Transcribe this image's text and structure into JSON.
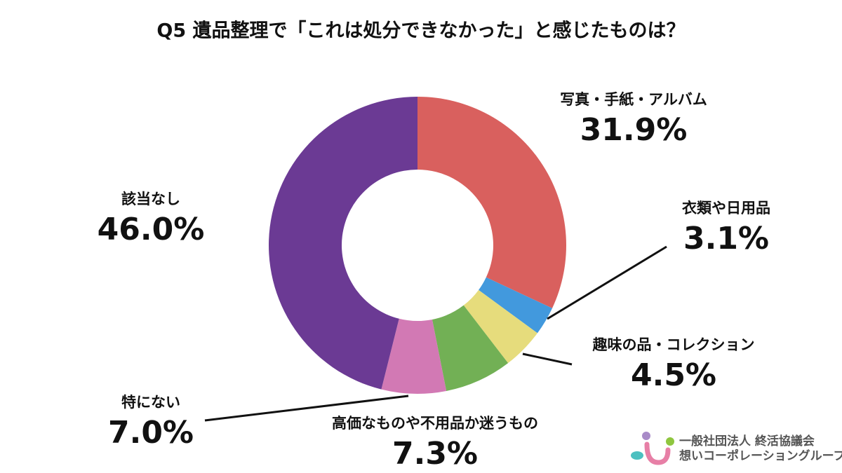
{
  "chart_data": {
    "type": "donut",
    "title": "Q5 遺品整理で「これは処分できなかった」と感じたものは？",
    "categories": [
      "写真・手紙・アルバム",
      "衣類や日用品",
      "趣味の品・コレクション",
      "高価なものや不用品か迷うもの",
      "特にない",
      "該当なし"
    ],
    "values": [
      31.9,
      3.1,
      4.5,
      7.3,
      7.0,
      46.0
    ],
    "value_labels": [
      "31.9%",
      "3.1%",
      "4.5%",
      "7.3%",
      "7.0%",
      "46.0%"
    ],
    "colors": [
      "#d9605e",
      "#4299dd",
      "#e6dc7c",
      "#72b055",
      "#d279b4",
      "#6b3a94"
    ]
  },
  "logo": {
    "line1": "一般社団法人 終活協議会",
    "line2": "想いコーポレーショングループ"
  }
}
